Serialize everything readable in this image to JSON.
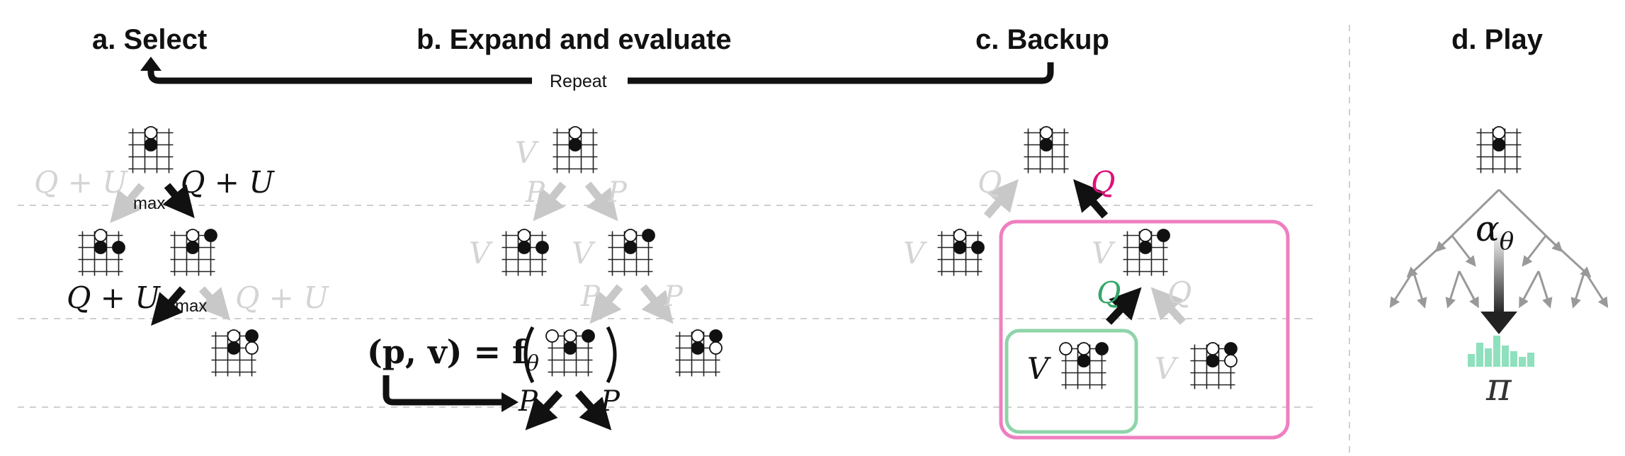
{
  "titles": {
    "select": "a. Select",
    "expand": "b. Expand and evaluate",
    "backup": "c. Backup",
    "play": "d. Play"
  },
  "repeat_label": "Repeat",
  "select": {
    "left_edge_label": "Q + U",
    "right_edge_label": "Q + U",
    "max_label_top": "max",
    "lower_left_label": "Q + U",
    "lower_right_label": "Q + U",
    "max_label_bottom": "max"
  },
  "expand": {
    "v_root": "V",
    "p_left": "P",
    "p_right": "P",
    "v_left": "V",
    "v_right": "V",
    "p_lower_left": "P",
    "p_lower_right": "P",
    "eval_lhs": "(p, v) = f",
    "eval_theta": "θ",
    "p_new_left": "P",
    "p_new_right": "P"
  },
  "backup": {
    "q_left": "Q",
    "q_right": "Q",
    "v_left": "V",
    "v_mid": "V",
    "q_lower_left": "Q",
    "q_lower_right": "Q",
    "v_new": "V",
    "v_other": "V"
  },
  "play": {
    "alpha": "α",
    "alpha_sub": "θ",
    "pi": "π"
  },
  "colors": {
    "black": "#111111",
    "gray": "#c8c8c8",
    "dark_gray": "#999999",
    "magenta": "#e0107a",
    "magenta_box": "#ee7fc0",
    "green": "#35a66a",
    "green_box": "#8fd4a9",
    "policy_bars": "#8fe0bd"
  }
}
